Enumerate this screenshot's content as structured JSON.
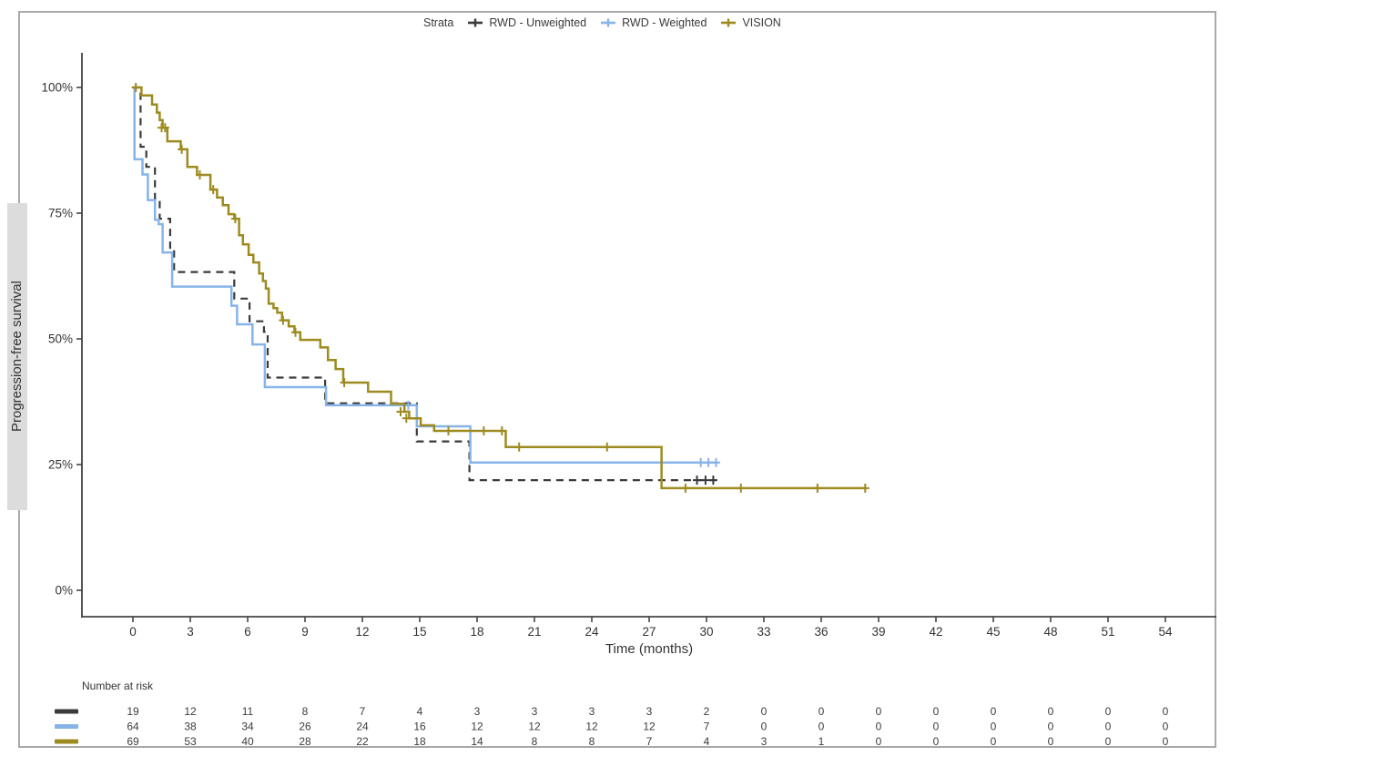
{
  "legend": {
    "title": "Strata"
  },
  "chart_data": {
    "type": "line",
    "subtype": "kaplan_meier_step_plot",
    "title": "",
    "xlabel": "Time (months)",
    "ylabel": "Progression-free survival",
    "x_ticks": [
      0,
      3,
      6,
      9,
      12,
      15,
      18,
      21,
      24,
      27,
      30,
      33,
      36,
      39,
      42,
      45,
      48,
      51,
      54
    ],
    "y_ticks": [
      {
        "label": "0%",
        "value": 0
      },
      {
        "label": "25%",
        "value": 25
      },
      {
        "label": "50%",
        "value": 50
      },
      {
        "label": "75%",
        "value": 75
      },
      {
        "label": "100%",
        "value": 100
      }
    ],
    "xlim": [
      0,
      54
    ],
    "ylim": [
      0,
      100
    ],
    "grid": false,
    "legend_position": "top",
    "series": [
      {
        "name": "RWD - Unweighted",
        "color": "#3a3a3a",
        "style": "dashed",
        "steps": [
          [
            0,
            100
          ],
          [
            0.4,
            88.2
          ],
          [
            0.7,
            84.2
          ],
          [
            1.15,
            77.8
          ],
          [
            1.4,
            73.9
          ],
          [
            1.95,
            67.9
          ],
          [
            2.15,
            63.3
          ],
          [
            5.3,
            58.0
          ],
          [
            6.1,
            53.5
          ],
          [
            6.85,
            51.4
          ],
          [
            7.05,
            42.3
          ],
          [
            10.05,
            37.2
          ],
          [
            14.85,
            29.6
          ],
          [
            17.6,
            21.9
          ]
        ],
        "end": 30.7,
        "censors": [
          [
            29.5,
            21.9
          ],
          [
            29.95,
            21.9
          ],
          [
            30.35,
            21.9
          ]
        ]
      },
      {
        "name": "RWD - Weighted",
        "color": "#87b4e8",
        "style": "solid",
        "steps": [
          [
            0,
            100
          ],
          [
            0.08,
            85.7
          ],
          [
            0.5,
            82.7
          ],
          [
            0.78,
            77.6
          ],
          [
            1.15,
            73.7
          ],
          [
            1.35,
            72.8
          ],
          [
            1.55,
            67.2
          ],
          [
            2.05,
            60.4
          ],
          [
            5.15,
            56.6
          ],
          [
            5.45,
            52.9
          ],
          [
            6.25,
            48.9
          ],
          [
            6.9,
            40.4
          ],
          [
            10.1,
            36.8
          ],
          [
            14.85,
            32.6
          ],
          [
            17.65,
            25.4
          ]
        ],
        "end": 30.6,
        "censors": [
          [
            14.4,
            36.8
          ],
          [
            29.7,
            25.4
          ],
          [
            30.1,
            25.4
          ],
          [
            30.5,
            25.4
          ]
        ]
      },
      {
        "name": "VISION",
        "color": "#9e8b20",
        "style": "solid",
        "steps": [
          [
            0,
            100
          ],
          [
            0.45,
            98.4
          ],
          [
            1.0,
            96.6
          ],
          [
            1.25,
            95.0
          ],
          [
            1.4,
            93.5
          ],
          [
            1.55,
            92.0
          ],
          [
            1.8,
            89.3
          ],
          [
            2.5,
            87.7
          ],
          [
            2.85,
            84.2
          ],
          [
            3.35,
            82.6
          ],
          [
            4.05,
            79.7
          ],
          [
            4.4,
            78.1
          ],
          [
            4.7,
            76.6
          ],
          [
            5.0,
            74.8
          ],
          [
            5.3,
            73.9
          ],
          [
            5.55,
            70.6
          ],
          [
            5.75,
            68.8
          ],
          [
            6.05,
            66.7
          ],
          [
            6.3,
            65.2
          ],
          [
            6.6,
            63.0
          ],
          [
            6.8,
            61.5
          ],
          [
            6.95,
            60.0
          ],
          [
            7.1,
            57.0
          ],
          [
            7.35,
            56.1
          ],
          [
            7.55,
            55.2
          ],
          [
            7.8,
            53.7
          ],
          [
            8.15,
            52.5
          ],
          [
            8.45,
            51.3
          ],
          [
            8.75,
            49.8
          ],
          [
            9.8,
            48.3
          ],
          [
            10.2,
            45.8
          ],
          [
            10.6,
            44.0
          ],
          [
            11.0,
            41.3
          ],
          [
            12.3,
            39.5
          ],
          [
            13.5,
            37.1
          ],
          [
            14.2,
            35.5
          ],
          [
            14.45,
            34.2
          ],
          [
            15.05,
            32.8
          ],
          [
            15.75,
            31.7
          ],
          [
            19.5,
            28.5
          ],
          [
            27.65,
            20.3
          ]
        ],
        "end": 38.3,
        "censors": [
          [
            0.15,
            100
          ],
          [
            1.5,
            92
          ],
          [
            1.68,
            92
          ],
          [
            2.55,
            87.7
          ],
          [
            3.5,
            82.6
          ],
          [
            4.2,
            79.7
          ],
          [
            5.35,
            73.9
          ],
          [
            7.85,
            53.7
          ],
          [
            8.5,
            51.3
          ],
          [
            11.05,
            41.3
          ],
          [
            14.0,
            35.5
          ],
          [
            14.3,
            34.2
          ],
          [
            16.5,
            31.7
          ],
          [
            18.35,
            31.7
          ],
          [
            19.3,
            31.7
          ],
          [
            20.2,
            28.5
          ],
          [
            24.8,
            28.5
          ],
          [
            28.9,
            20.3
          ],
          [
            31.8,
            20.3
          ],
          [
            35.8,
            20.3
          ],
          [
            38.3,
            20.3
          ]
        ]
      }
    ],
    "risk_table": {
      "title": "Number at risk",
      "months": [
        0,
        3,
        6,
        9,
        12,
        15,
        18,
        21,
        24,
        27,
        30,
        33,
        36,
        39,
        42,
        45,
        48,
        51,
        54
      ],
      "rows": [
        {
          "name": "RWD - Unweighted",
          "color": "#3a3a3a",
          "counts": [
            19,
            12,
            11,
            8,
            7,
            4,
            3,
            3,
            3,
            3,
            2,
            0,
            0,
            0,
            0,
            0,
            0,
            0,
            0
          ]
        },
        {
          "name": "RWD - Weighted",
          "color": "#87b4e8",
          "counts": [
            64,
            38,
            34,
            26,
            24,
            16,
            12,
            12,
            12,
            12,
            7,
            0,
            0,
            0,
            0,
            0,
            0,
            0,
            0
          ]
        },
        {
          "name": "VISION",
          "color": "#9e8b20",
          "counts": [
            69,
            53,
            40,
            28,
            22,
            18,
            14,
            8,
            8,
            7,
            4,
            3,
            1,
            0,
            0,
            0,
            0,
            0,
            0
          ]
        }
      ]
    }
  }
}
